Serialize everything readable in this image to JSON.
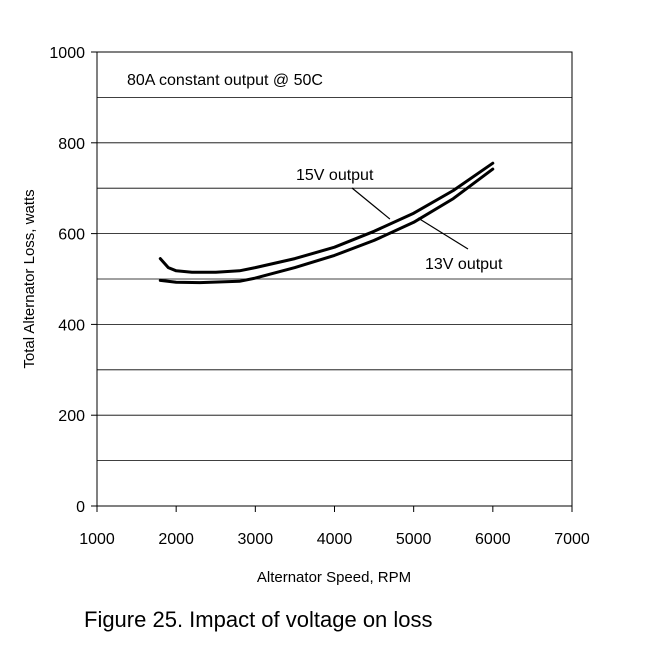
{
  "chart_data": {
    "type": "line",
    "title": "",
    "xlabel": "Alternator Speed, RPM",
    "ylabel": "Total Alternator Loss, watts",
    "xlim": [
      1000,
      7000
    ],
    "ylim": [
      0,
      1000
    ],
    "xticks": [
      1000,
      2000,
      3000,
      4000,
      5000,
      6000,
      7000
    ],
    "yticks": [
      0,
      200,
      400,
      600,
      800,
      1000
    ],
    "ygrid": [
      100,
      200,
      300,
      400,
      500,
      600,
      700,
      800,
      900
    ],
    "grid": "horizontal",
    "annotation": "80A constant output @ 50C",
    "series": [
      {
        "name": "15V output",
        "x": [
          1800,
          1900,
          2000,
          2200,
          2500,
          2800,
          3000,
          3500,
          4000,
          4500,
          5000,
          5500,
          6000
        ],
        "y": [
          545,
          525,
          518,
          515,
          515,
          518,
          525,
          545,
          570,
          605,
          645,
          695,
          755
        ]
      },
      {
        "name": "13V output",
        "x": [
          1800,
          2000,
          2300,
          2800,
          3000,
          3500,
          4000,
          4500,
          5000,
          5500,
          6000
        ],
        "y": [
          497,
          493,
          492,
          495,
          502,
          525,
          552,
          585,
          625,
          677,
          742
        ]
      }
    ],
    "series_labels": [
      {
        "text": "15V output",
        "at": [
          4700,
          632
        ]
      },
      {
        "text": "13V output",
        "at": [
          4100,
          578
        ]
      }
    ]
  },
  "caption": "Figure 25. Impact of voltage on loss"
}
